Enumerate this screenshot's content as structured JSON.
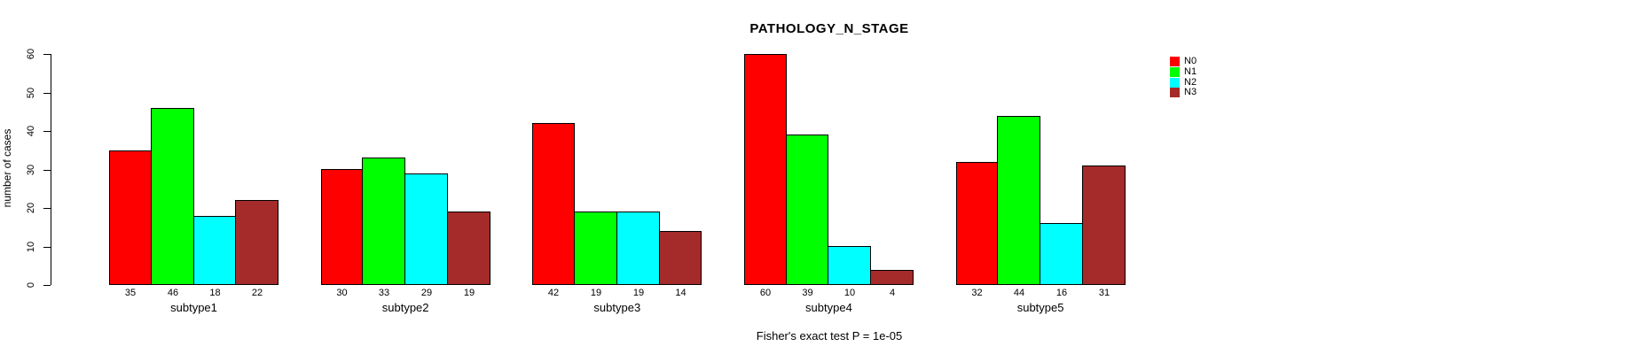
{
  "title": "PATHOLOGY_N_STAGE",
  "footer": "Fisher's exact test P = 1e-05",
  "chart_data": {
    "type": "bar",
    "title": "PATHOLOGY_N_STAGE",
    "ylabel": "number of cases",
    "xlabel": "",
    "categories": [
      "subtype1",
      "subtype2",
      "subtype3",
      "subtype4",
      "subtype5"
    ],
    "series": [
      {
        "name": "N0",
        "color": "#FF0000",
        "values": [
          35,
          30,
          42,
          60,
          32
        ]
      },
      {
        "name": "N1",
        "color": "#00FF00",
        "values": [
          46,
          33,
          19,
          39,
          44
        ]
      },
      {
        "name": "N2",
        "color": "#00FFFF",
        "values": [
          18,
          29,
          19,
          10,
          16
        ]
      },
      {
        "name": "N3",
        "color": "#A52A2A",
        "values": [
          22,
          19,
          14,
          4,
          31
        ]
      }
    ],
    "bar_value_labels_shown": true,
    "ylim": [
      0,
      60
    ],
    "yticks": [
      0,
      10,
      20,
      30,
      40,
      50,
      60
    ],
    "grid": false,
    "legend_position": "right",
    "annotation": "Fisher's exact test P = 1e-05"
  }
}
